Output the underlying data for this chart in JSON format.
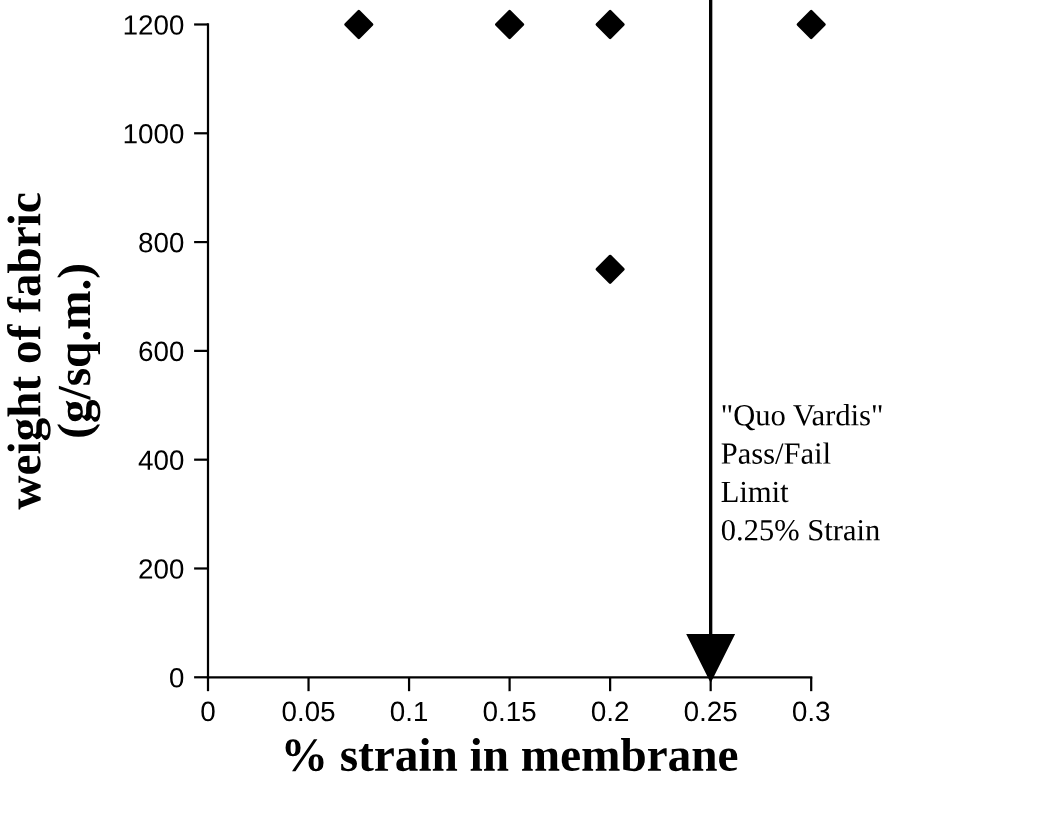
{
  "chart_data": {
    "type": "scatter",
    "xlabel": "% strain in membrane",
    "ylabel": "weight of fabric\n(g/sq.m.)",
    "x": [
      0.075,
      0.15,
      0.2,
      0.3,
      0.2
    ],
    "values": [
      1200,
      1200,
      1200,
      1200,
      750
    ],
    "color": "#000000",
    "marker": "diamond",
    "xlim": [
      0,
      0.3
    ],
    "ylim": [
      0,
      1200
    ],
    "xticks": [
      0,
      0.05,
      0.1,
      0.15,
      0.2,
      0.25,
      0.3
    ],
    "yticks": [
      0,
      200,
      400,
      600,
      800,
      1000,
      1200
    ],
    "grid": false,
    "legend": false,
    "ref_lines": [
      {
        "axis": "x",
        "value": 0.25,
        "label": "\"Quo Vardis\"\nPass/Fail\nLimit\n0.25% Strain",
        "color": "#000000"
      }
    ]
  }
}
